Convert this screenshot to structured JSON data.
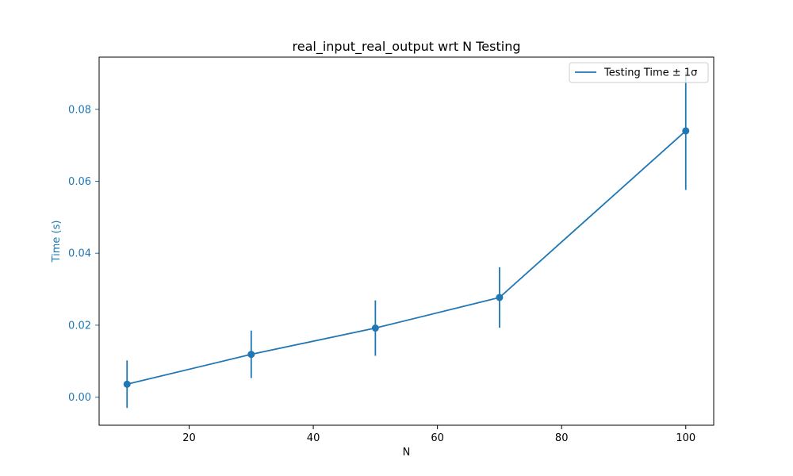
{
  "chart_data": {
    "type": "line",
    "title": "real_input_real_output wrt N Testing",
    "xlabel": "N",
    "ylabel": "Time (s)",
    "xlim": [
      5.5,
      104.5
    ],
    "ylim": [
      -0.0078,
      0.0945
    ],
    "x_ticks": [
      20,
      40,
      60,
      80,
      100
    ],
    "y_ticks": [
      0.0,
      0.02,
      0.04,
      0.06,
      0.08
    ],
    "y_tick_labels": [
      "0.00",
      "0.02",
      "0.04",
      "0.06",
      "0.08"
    ],
    "grid": false,
    "legend_position": "upper right",
    "series": [
      {
        "name": "Testing Time ± 1σ",
        "x": [
          10,
          30,
          50,
          70,
          100
        ],
        "y": [
          0.0036,
          0.0119,
          0.0192,
          0.0277,
          0.074
        ],
        "yerr": [
          0.0066,
          0.0066,
          0.0077,
          0.0084,
          0.0164
        ]
      }
    ],
    "colors": {
      "series": "#1f77b4",
      "ylabel": "#1f77b4",
      "axes": "#000000"
    }
  }
}
